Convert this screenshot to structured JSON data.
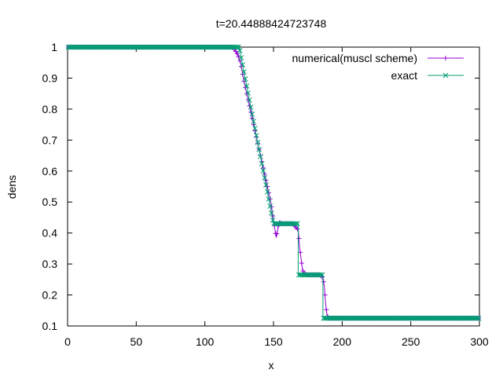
{
  "chart_data": {
    "type": "line",
    "title": "t=20.44888424723748",
    "xlabel": "x",
    "ylabel": "dens",
    "xlim": [
      0,
      300
    ],
    "ylim": [
      0.1,
      1.0
    ],
    "xticks": [
      "0",
      "50",
      "100",
      "150",
      "200",
      "250",
      "300"
    ],
    "yticks": [
      "0.1",
      "0.2",
      "0.3",
      "0.4",
      "0.5",
      "0.6",
      "0.7",
      "0.8",
      "0.9",
      "1"
    ],
    "grid": false,
    "legend_position": "top-right",
    "series": [
      {
        "name": "numerical(muscl scheme)",
        "color": "#9400d3",
        "marker": "plus",
        "x": [
          0,
          120,
          122,
          124,
          126,
          128,
          130,
          132,
          134,
          136,
          138,
          140,
          142,
          144,
          146,
          148,
          150,
          152,
          154,
          156,
          158,
          160,
          162,
          164,
          166,
          168,
          169,
          170,
          171,
          172,
          174,
          176,
          178,
          180,
          182,
          184,
          186,
          187,
          188,
          189,
          190,
          300
        ],
        "y": [
          1.0,
          1.0,
          0.99,
          0.975,
          0.95,
          0.9,
          0.86,
          0.82,
          0.78,
          0.74,
          0.7,
          0.66,
          0.62,
          0.58,
          0.54,
          0.5,
          0.44,
          0.385,
          0.435,
          0.43,
          0.43,
          0.43,
          0.43,
          0.43,
          0.42,
          0.41,
          0.355,
          0.32,
          0.285,
          0.27,
          0.265,
          0.265,
          0.265,
          0.265,
          0.265,
          0.265,
          0.255,
          0.23,
          0.17,
          0.135,
          0.125,
          0.125
        ]
      },
      {
        "name": "exact",
        "color": "#009e73",
        "marker": "x",
        "x": [
          0,
          125,
          150,
          168,
          168.001,
          186,
          186.001,
          300
        ],
        "y": [
          1.0,
          1.0,
          0.43,
          0.43,
          0.265,
          0.265,
          0.125,
          0.125
        ]
      }
    ]
  }
}
